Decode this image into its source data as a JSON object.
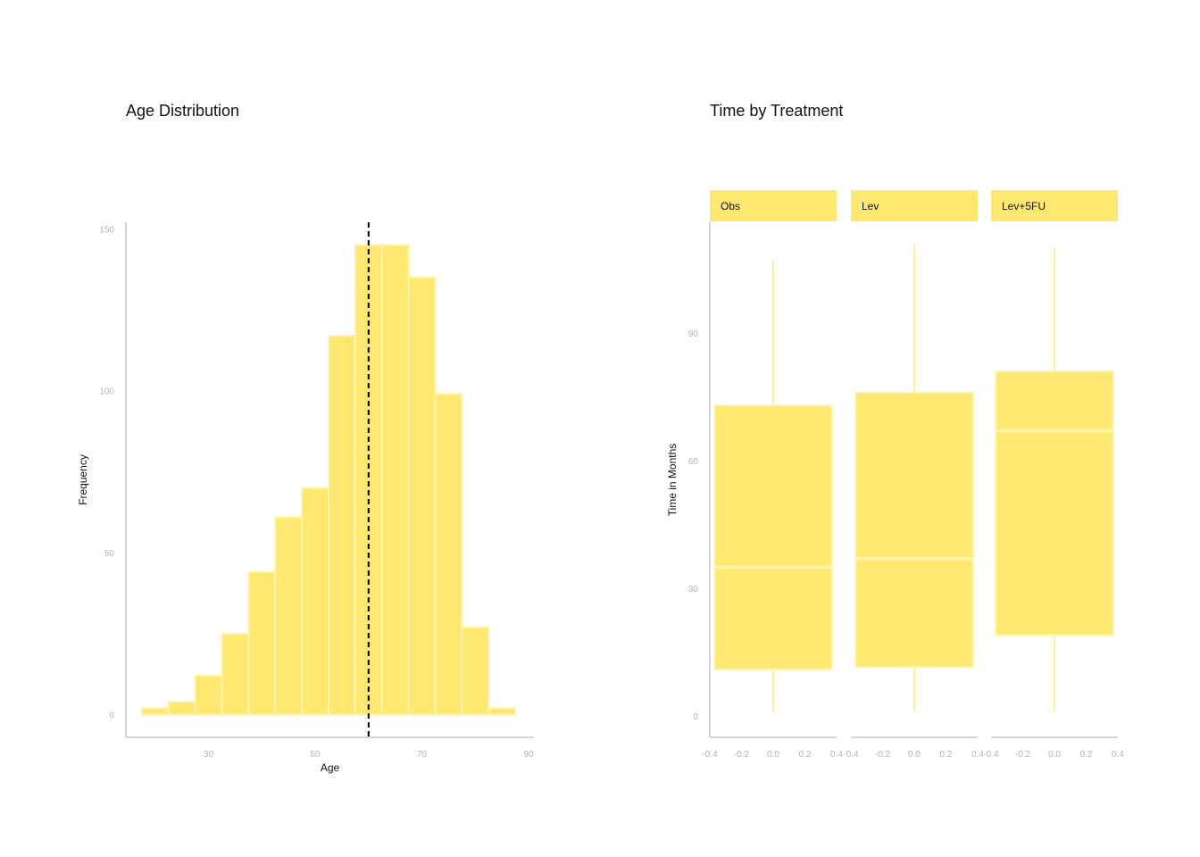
{
  "colors": {
    "fill": "#ffe872",
    "edge": "#fff5a8",
    "whisker": "#fff19a",
    "axis": "#c8c8c8",
    "tick_text": "#b5b5b5",
    "ref_line": "#000000"
  },
  "chart_data": [
    {
      "type": "bar",
      "subtype": "histogram",
      "title": "Age Distribution",
      "xlabel": "Age",
      "ylabel": "Frequency",
      "xlim": [
        14.5,
        91
      ],
      "ylim": [
        -7,
        152
      ],
      "x_ticks": [
        30,
        50,
        70,
        90
      ],
      "y_ticks": [
        0,
        50,
        100,
        150
      ],
      "bins": [
        {
          "x0": 17.5,
          "x1": 22.5,
          "count": 2
        },
        {
          "x0": 22.5,
          "x1": 27.5,
          "count": 4
        },
        {
          "x0": 27.5,
          "x1": 32.5,
          "count": 12
        },
        {
          "x0": 32.5,
          "x1": 37.5,
          "count": 25
        },
        {
          "x0": 37.5,
          "x1": 42.5,
          "count": 44
        },
        {
          "x0": 42.5,
          "x1": 47.5,
          "count": 61
        },
        {
          "x0": 47.5,
          "x1": 52.5,
          "count": 70
        },
        {
          "x0": 52.5,
          "x1": 57.5,
          "count": 117
        },
        {
          "x0": 57.5,
          "x1": 62.5,
          "count": 145
        },
        {
          "x0": 62.5,
          "x1": 67.5,
          "count": 145
        },
        {
          "x0": 67.5,
          "x1": 72.5,
          "count": 135
        },
        {
          "x0": 72.5,
          "x1": 77.5,
          "count": 99
        },
        {
          "x0": 77.5,
          "x1": 82.5,
          "count": 27
        },
        {
          "x0": 82.5,
          "x1": 87.5,
          "count": 2
        }
      ],
      "reference_line": {
        "x": 60,
        "style": "dashed"
      },
      "grid": false
    },
    {
      "type": "box",
      "title": "Time by Treatment",
      "ylabel": "Time in Months",
      "ylim": [
        -5,
        116
      ],
      "y_ticks": [
        0,
        30,
        60,
        90
      ],
      "x_ticks": [
        "-0.4",
        "-0.2",
        "0.0",
        "0.2",
        "0.4"
      ],
      "xlim": [
        -0.4,
        0.4
      ],
      "panels": [
        {
          "label": "Obs",
          "min": 1,
          "q1": 11,
          "median": 35,
          "q3": 73,
          "max": 107
        },
        {
          "label": "Lev",
          "min": 1,
          "q1": 11.5,
          "median": 37,
          "q3": 76,
          "max": 111
        },
        {
          "label": "Lev+5FU",
          "min": 1,
          "q1": 19,
          "median": 67,
          "q3": 81,
          "max": 110
        }
      ],
      "grid": false
    }
  ]
}
